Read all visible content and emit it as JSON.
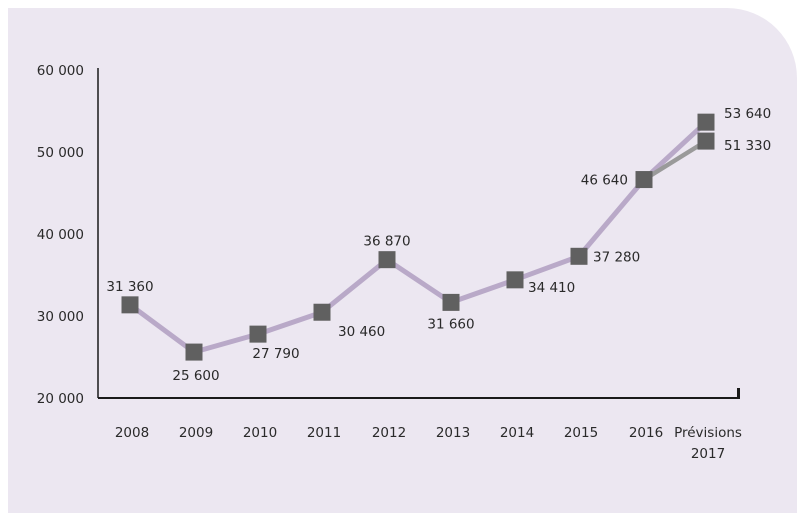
{
  "chart_data": {
    "type": "line",
    "title": "",
    "xlabel": "",
    "ylabel": "",
    "categories": [
      "2008",
      "2009",
      "2010",
      "2011",
      "2012",
      "2013",
      "2014",
      "2015",
      "2016",
      "Prévisions 2017"
    ],
    "category_lines": [
      [
        "2008"
      ],
      [
        "2009"
      ],
      [
        "2010"
      ],
      [
        "2011"
      ],
      [
        "2012"
      ],
      [
        "2013"
      ],
      [
        "2014"
      ],
      [
        "2015"
      ],
      [
        "2016"
      ],
      [
        "Prévisions",
        "2017"
      ]
    ],
    "ylim": [
      20000,
      60000
    ],
    "yticks": [
      20000,
      30000,
      40000,
      50000,
      60000
    ],
    "ytick_labels": [
      "20 000",
      "30 000",
      "40 000",
      "50 000",
      "60 000"
    ],
    "grid": false,
    "legend": "none",
    "series": [
      {
        "values": [
          31360,
          25600,
          27790,
          30460,
          36870,
          31660,
          34410,
          37280,
          46640,
          53640
        ],
        "labels": [
          "31 360",
          "25 600",
          "27 790",
          "30 460",
          "36 870",
          "31 660",
          "34 410",
          "37 280",
          "46 640",
          "53 640"
        ],
        "color": "#b9a9c8"
      },
      {
        "values": [
          null,
          null,
          null,
          null,
          null,
          null,
          null,
          null,
          46640,
          51330
        ],
        "labels": [
          null,
          null,
          null,
          null,
          null,
          null,
          null,
          null,
          null,
          "51 330"
        ],
        "color": "#9a9a9a"
      }
    ],
    "marker_color": "#606060",
    "axis_color": "#1a1a1a",
    "background_color": "#ece7f1"
  }
}
